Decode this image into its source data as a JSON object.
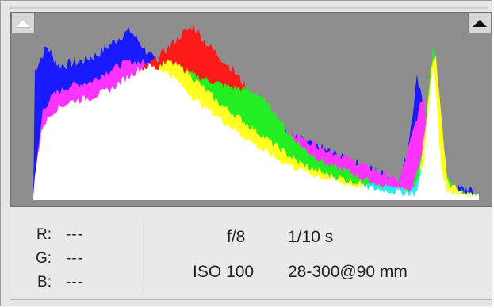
{
  "histogram": {
    "colors": {
      "background": "#8e8e8e",
      "red": "#ff1a1a",
      "green": "#22ee22",
      "blue": "#1a1aff",
      "yellow": "#ffff22",
      "magenta": "#ff33ff",
      "cyan": "#22eeee",
      "white": "#ffffff"
    },
    "shadow_clip_icon": "triangle-up-white-icon",
    "highlight_clip_icon": "triangle-up-black-icon"
  },
  "readout": {
    "r_label": "R:",
    "g_label": "G:",
    "b_label": "B:",
    "r_value": "---",
    "g_value": "---",
    "b_value": "---"
  },
  "exif": {
    "aperture": "f/8",
    "shutter": "1/10 s",
    "iso": "ISO 100",
    "lens": "28-300@90 mm"
  }
}
